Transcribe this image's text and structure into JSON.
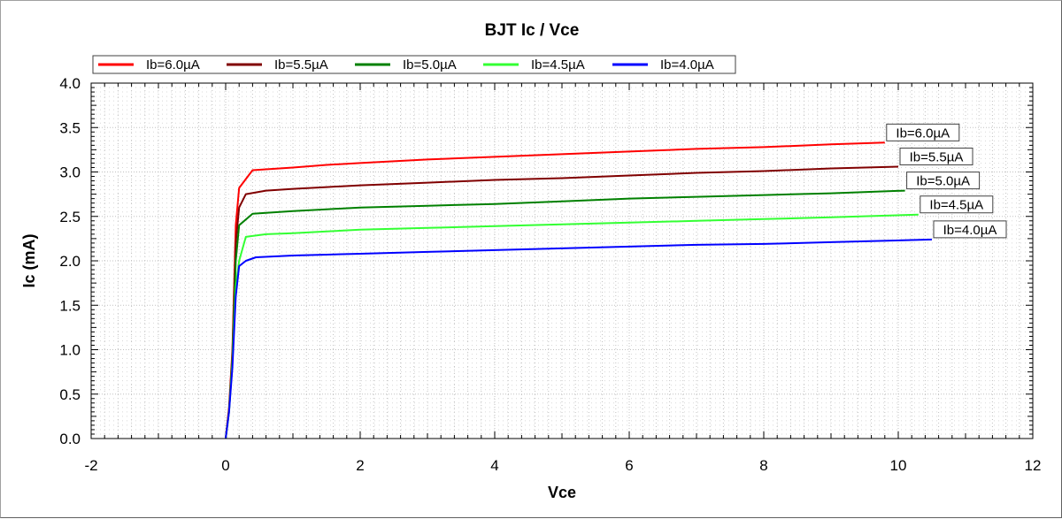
{
  "chart_data": {
    "type": "line",
    "title": "BJT Ic / Vce",
    "xlabel": "Vce",
    "ylabel": "Ic (mA)",
    "xlim": [
      -2,
      12
    ],
    "ylim": [
      0,
      4
    ],
    "xticks": [
      "-2",
      "0",
      "2",
      "4",
      "6",
      "8",
      "10",
      "12"
    ],
    "yticks": [
      "0.0",
      "0.5",
      "1.0",
      "1.5",
      "2.0",
      "2.5",
      "3.0",
      "3.5",
      "4.0"
    ],
    "grid": true,
    "legend_position": "top-left",
    "series": [
      {
        "name": "Ib=6.0µA",
        "color": "#ff0000",
        "x": [
          0,
          0.05,
          0.1,
          0.15,
          0.2,
          0.3,
          0.4,
          0.6,
          1,
          1.5,
          2,
          3,
          4,
          5,
          6,
          7,
          8,
          9,
          9.8
        ],
        "y": [
          0,
          0.35,
          1.0,
          2.4,
          2.82,
          2.92,
          3.02,
          3.03,
          3.05,
          3.08,
          3.1,
          3.14,
          3.17,
          3.2,
          3.23,
          3.26,
          3.28,
          3.31,
          3.33
        ]
      },
      {
        "name": "Ib=5.5µA",
        "color": "#800000",
        "x": [
          0,
          0.05,
          0.1,
          0.15,
          0.2,
          0.3,
          0.6,
          1,
          1.5,
          2,
          3,
          4,
          5,
          6,
          7,
          8,
          9,
          10
        ],
        "y": [
          0,
          0.33,
          0.95,
          2.2,
          2.6,
          2.75,
          2.79,
          2.81,
          2.83,
          2.85,
          2.88,
          2.91,
          2.93,
          2.96,
          2.99,
          3.01,
          3.04,
          3.06
        ]
      },
      {
        "name": "Ib=5.0µA",
        "color": "#008000",
        "x": [
          0,
          0.05,
          0.1,
          0.15,
          0.2,
          0.4,
          1,
          1.5,
          2,
          3,
          4,
          5,
          6,
          7,
          8,
          9,
          10.1
        ],
        "y": [
          0,
          0.3,
          0.9,
          2.0,
          2.4,
          2.53,
          2.56,
          2.58,
          2.6,
          2.62,
          2.64,
          2.67,
          2.7,
          2.72,
          2.74,
          2.76,
          2.79
        ]
      },
      {
        "name": "Ib=4.5µA",
        "color": "#33ff33",
        "x": [
          0,
          0.05,
          0.1,
          0.15,
          0.2,
          0.3,
          0.6,
          1,
          1.5,
          2,
          3,
          4,
          5,
          6,
          7,
          8,
          9,
          10.3
        ],
        "y": [
          0,
          0.3,
          0.85,
          1.7,
          2.0,
          2.27,
          2.3,
          2.31,
          2.33,
          2.35,
          2.37,
          2.39,
          2.41,
          2.43,
          2.45,
          2.47,
          2.49,
          2.52
        ]
      },
      {
        "name": "Ib=4.0µA",
        "color": "#0000ff",
        "x": [
          0,
          0.05,
          0.1,
          0.15,
          0.2,
          0.3,
          0.45,
          1,
          1.5,
          2,
          3,
          4,
          5,
          6,
          7,
          8,
          9,
          10.5
        ],
        "y": [
          0,
          0.3,
          0.8,
          1.6,
          1.94,
          2.0,
          2.04,
          2.06,
          2.07,
          2.08,
          2.1,
          2.12,
          2.14,
          2.16,
          2.18,
          2.19,
          2.21,
          2.24
        ]
      }
    ]
  }
}
